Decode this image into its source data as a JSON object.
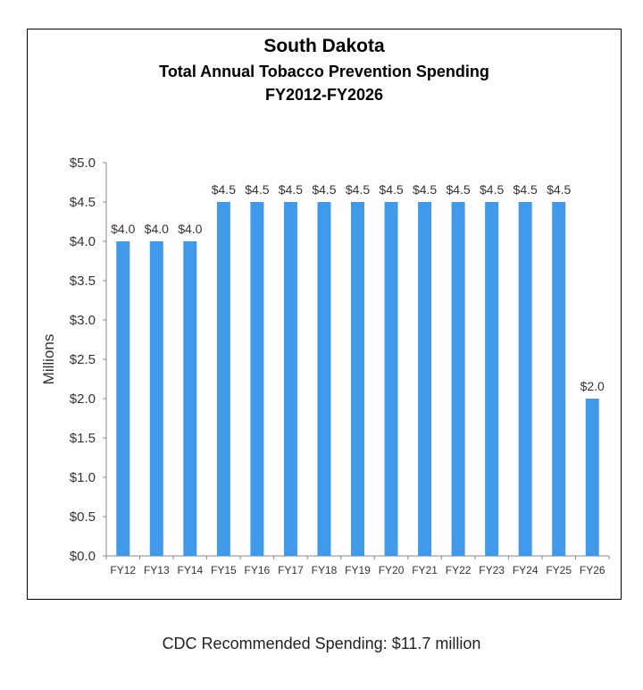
{
  "chart_data": {
    "type": "bar",
    "title": "South Dakota",
    "subtitle": "Total Annual Tobacco Prevention Spending",
    "subtitle2": "FY2012-FY2026",
    "categories": [
      "FY12",
      "FY13",
      "FY14",
      "FY15",
      "FY16",
      "FY17",
      "FY18",
      "FY19",
      "FY20",
      "FY21",
      "FY22",
      "FY23",
      "FY24",
      "FY25",
      "FY26"
    ],
    "values": [
      4.0,
      4.0,
      4.0,
      4.5,
      4.5,
      4.5,
      4.5,
      4.5,
      4.5,
      4.5,
      4.5,
      4.5,
      4.5,
      4.5,
      2.0
    ],
    "data_labels": [
      "$4.0",
      "$4.0",
      "$4.0",
      "$4.5",
      "$4.5",
      "$4.5",
      "$4.5",
      "$4.5",
      "$4.5",
      "$4.5",
      "$4.5",
      "$4.5",
      "$4.5",
      "$4.5",
      "$2.0"
    ],
    "xlabel": "",
    "ylabel": "Millions",
    "ylim": [
      0,
      5
    ],
    "yticks": [
      "$0.0",
      "$0.5",
      "$1.0",
      "$1.5",
      "$2.0",
      "$2.5",
      "$3.0",
      "$3.5",
      "$4.0",
      "$4.5",
      "$5.0"
    ],
    "grid": false,
    "bar_color": "#4199E9"
  },
  "footer": "CDC Recommended Spending: $11.7 million"
}
